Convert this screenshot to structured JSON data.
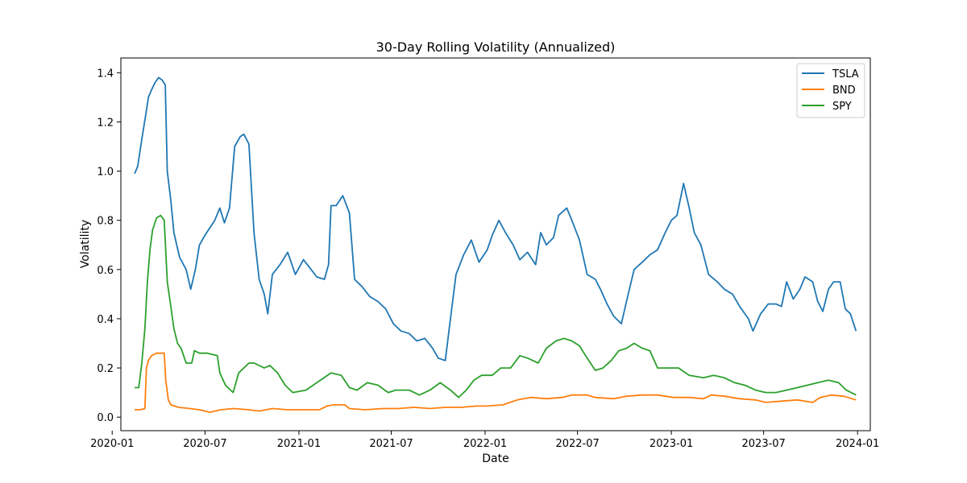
{
  "chart_data": {
    "type": "line",
    "title": "30-Day Rolling Volatility (Annualized)",
    "xlabel": "Date",
    "ylabel": "Volatility",
    "xlim": [
      "2020-01-18",
      "2024-01-26"
    ],
    "ylim": [
      -0.055,
      1.46
    ],
    "x_ticks": [
      "2020-01",
      "2020-07",
      "2021-01",
      "2021-07",
      "2022-01",
      "2022-07",
      "2023-01",
      "2023-07",
      "2024-01"
    ],
    "y_ticks": [
      "0.0",
      "0.2",
      "0.4",
      "0.6",
      "0.8",
      "1.0",
      "1.2",
      "1.4"
    ],
    "y_tick_values": [
      0.0,
      0.2,
      0.4,
      0.6,
      0.8,
      1.0,
      1.2,
      1.4
    ],
    "grid": false,
    "legend_position": "top-right",
    "series": [
      {
        "name": "TSLA",
        "color": "#1f77b4",
        "points": [
          [
            "2020-02-14",
            0.99
          ],
          [
            "2020-02-20",
            1.02
          ],
          [
            "2020-02-28",
            1.13
          ],
          [
            "2020-03-06",
            1.22
          ],
          [
            "2020-03-12",
            1.3
          ],
          [
            "2020-03-18",
            1.33
          ],
          [
            "2020-03-25",
            1.36
          ],
          [
            "2020-04-01",
            1.38
          ],
          [
            "2020-04-08",
            1.37
          ],
          [
            "2020-04-14",
            1.35
          ],
          [
            "2020-04-18",
            1.0
          ],
          [
            "2020-04-25",
            0.88
          ],
          [
            "2020-05-01",
            0.75
          ],
          [
            "2020-05-12",
            0.65
          ],
          [
            "2020-05-25",
            0.6
          ],
          [
            "2020-06-03",
            0.52
          ],
          [
            "2020-06-12",
            0.6
          ],
          [
            "2020-06-20",
            0.7
          ],
          [
            "2020-07-01",
            0.74
          ],
          [
            "2020-07-20",
            0.8
          ],
          [
            "2020-07-30",
            0.85
          ],
          [
            "2020-08-08",
            0.79
          ],
          [
            "2020-08-18",
            0.85
          ],
          [
            "2020-08-28",
            1.1
          ],
          [
            "2020-09-08",
            1.14
          ],
          [
            "2020-09-15",
            1.15
          ],
          [
            "2020-09-25",
            1.11
          ],
          [
            "2020-10-05",
            0.75
          ],
          [
            "2020-10-15",
            0.56
          ],
          [
            "2020-10-25",
            0.5
          ],
          [
            "2020-11-01",
            0.42
          ],
          [
            "2020-11-10",
            0.58
          ],
          [
            "2020-11-25",
            0.62
          ],
          [
            "2020-12-10",
            0.67
          ],
          [
            "2020-12-25",
            0.58
          ],
          [
            "2021-01-10",
            0.64
          ],
          [
            "2021-01-25",
            0.6
          ],
          [
            "2021-02-05",
            0.57
          ],
          [
            "2021-02-20",
            0.56
          ],
          [
            "2021-02-28",
            0.62
          ],
          [
            "2021-03-05",
            0.86
          ],
          [
            "2021-03-15",
            0.86
          ],
          [
            "2021-03-28",
            0.9
          ],
          [
            "2021-04-10",
            0.83
          ],
          [
            "2021-04-20",
            0.56
          ],
          [
            "2021-05-05",
            0.53
          ],
          [
            "2021-05-20",
            0.49
          ],
          [
            "2021-06-05",
            0.47
          ],
          [
            "2021-06-20",
            0.44
          ],
          [
            "2021-07-05",
            0.38
          ],
          [
            "2021-07-20",
            0.35
          ],
          [
            "2021-08-05",
            0.34
          ],
          [
            "2021-08-20",
            0.31
          ],
          [
            "2021-09-05",
            0.32
          ],
          [
            "2021-09-20",
            0.28
          ],
          [
            "2021-10-01",
            0.24
          ],
          [
            "2021-10-15",
            0.23
          ],
          [
            "2021-10-25",
            0.4
          ],
          [
            "2021-11-05",
            0.58
          ],
          [
            "2021-11-20",
            0.66
          ],
          [
            "2021-12-05",
            0.72
          ],
          [
            "2021-12-20",
            0.63
          ],
          [
            "2022-01-05",
            0.68
          ],
          [
            "2022-01-15",
            0.74
          ],
          [
            "2022-01-28",
            0.8
          ],
          [
            "2022-02-10",
            0.75
          ],
          [
            "2022-02-25",
            0.7
          ],
          [
            "2022-03-10",
            0.64
          ],
          [
            "2022-03-25",
            0.67
          ],
          [
            "2022-04-10",
            0.62
          ],
          [
            "2022-04-20",
            0.75
          ],
          [
            "2022-05-01",
            0.7
          ],
          [
            "2022-05-15",
            0.73
          ],
          [
            "2022-05-25",
            0.82
          ],
          [
            "2022-06-10",
            0.85
          ],
          [
            "2022-06-20",
            0.8
          ],
          [
            "2022-07-05",
            0.72
          ],
          [
            "2022-07-20",
            0.58
          ],
          [
            "2022-08-05",
            0.56
          ],
          [
            "2022-08-15",
            0.52
          ],
          [
            "2022-08-28",
            0.46
          ],
          [
            "2022-09-10",
            0.41
          ],
          [
            "2022-09-25",
            0.38
          ],
          [
            "2022-10-05",
            0.47
          ],
          [
            "2022-10-20",
            0.6
          ],
          [
            "2022-11-05",
            0.63
          ],
          [
            "2022-11-20",
            0.66
          ],
          [
            "2022-12-05",
            0.68
          ],
          [
            "2022-12-20",
            0.75
          ],
          [
            "2023-01-01",
            0.8
          ],
          [
            "2023-01-12",
            0.82
          ],
          [
            "2023-01-25",
            0.95
          ],
          [
            "2023-02-05",
            0.85
          ],
          [
            "2023-02-15",
            0.75
          ],
          [
            "2023-02-28",
            0.7
          ],
          [
            "2023-03-15",
            0.58
          ],
          [
            "2023-04-01",
            0.55
          ],
          [
            "2023-04-15",
            0.52
          ],
          [
            "2023-05-01",
            0.5
          ],
          [
            "2023-05-15",
            0.45
          ],
          [
            "2023-06-01",
            0.4
          ],
          [
            "2023-06-10",
            0.35
          ],
          [
            "2023-06-25",
            0.42
          ],
          [
            "2023-07-10",
            0.46
          ],
          [
            "2023-07-25",
            0.46
          ],
          [
            "2023-08-05",
            0.45
          ],
          [
            "2023-08-15",
            0.55
          ],
          [
            "2023-08-28",
            0.48
          ],
          [
            "2023-09-10",
            0.52
          ],
          [
            "2023-09-20",
            0.57
          ],
          [
            "2023-10-05",
            0.55
          ],
          [
            "2023-10-15",
            0.47
          ],
          [
            "2023-10-25",
            0.43
          ],
          [
            "2023-11-05",
            0.52
          ],
          [
            "2023-11-15",
            0.55
          ],
          [
            "2023-11-28",
            0.55
          ],
          [
            "2023-12-08",
            0.44
          ],
          [
            "2023-12-18",
            0.42
          ],
          [
            "2023-12-29",
            0.35
          ]
        ]
      },
      {
        "name": "BND",
        "color": "#ff7f0e",
        "points": [
          [
            "2020-02-14",
            0.03
          ],
          [
            "2020-02-25",
            0.03
          ],
          [
            "2020-03-05",
            0.035
          ],
          [
            "2020-03-08",
            0.2
          ],
          [
            "2020-03-12",
            0.23
          ],
          [
            "2020-03-18",
            0.25
          ],
          [
            "2020-03-28",
            0.26
          ],
          [
            "2020-04-12",
            0.26
          ],
          [
            "2020-04-15",
            0.15
          ],
          [
            "2020-04-20",
            0.07
          ],
          [
            "2020-04-25",
            0.05
          ],
          [
            "2020-05-10",
            0.04
          ],
          [
            "2020-06-01",
            0.035
          ],
          [
            "2020-06-20",
            0.03
          ],
          [
            "2020-07-10",
            0.02
          ],
          [
            "2020-08-01",
            0.03
          ],
          [
            "2020-08-25",
            0.035
          ],
          [
            "2020-09-25",
            0.03
          ],
          [
            "2020-10-15",
            0.025
          ],
          [
            "2020-11-10",
            0.035
          ],
          [
            "2020-12-10",
            0.03
          ],
          [
            "2021-01-10",
            0.03
          ],
          [
            "2021-02-10",
            0.03
          ],
          [
            "2021-02-25",
            0.045
          ],
          [
            "2021-03-10",
            0.05
          ],
          [
            "2021-04-01",
            0.05
          ],
          [
            "2021-04-10",
            0.035
          ],
          [
            "2021-05-10",
            0.03
          ],
          [
            "2021-06-15",
            0.035
          ],
          [
            "2021-07-15",
            0.035
          ],
          [
            "2021-08-15",
            0.04
          ],
          [
            "2021-09-15",
            0.035
          ],
          [
            "2021-10-15",
            0.04
          ],
          [
            "2021-11-15",
            0.04
          ],
          [
            "2021-12-15",
            0.045
          ],
          [
            "2022-01-05",
            0.045
          ],
          [
            "2022-02-05",
            0.05
          ],
          [
            "2022-03-05",
            0.07
          ],
          [
            "2022-04-01",
            0.08
          ],
          [
            "2022-05-01",
            0.075
          ],
          [
            "2022-06-01",
            0.08
          ],
          [
            "2022-06-20",
            0.09
          ],
          [
            "2022-07-20",
            0.09
          ],
          [
            "2022-08-05",
            0.08
          ],
          [
            "2022-09-10",
            0.075
          ],
          [
            "2022-10-05",
            0.085
          ],
          [
            "2022-11-05",
            0.09
          ],
          [
            "2022-12-05",
            0.09
          ],
          [
            "2023-01-05",
            0.08
          ],
          [
            "2023-02-05",
            0.08
          ],
          [
            "2023-03-05",
            0.075
          ],
          [
            "2023-03-20",
            0.09
          ],
          [
            "2023-04-15",
            0.085
          ],
          [
            "2023-05-15",
            0.075
          ],
          [
            "2023-06-15",
            0.07
          ],
          [
            "2023-07-05",
            0.06
          ],
          [
            "2023-08-05",
            0.065
          ],
          [
            "2023-09-05",
            0.07
          ],
          [
            "2023-10-05",
            0.06
          ],
          [
            "2023-10-20",
            0.08
          ],
          [
            "2023-11-10",
            0.09
          ],
          [
            "2023-12-05",
            0.085
          ],
          [
            "2023-12-29",
            0.07
          ]
        ]
      },
      {
        "name": "SPY",
        "color": "#2ca02c",
        "points": [
          [
            "2020-02-14",
            0.12
          ],
          [
            "2020-02-22",
            0.12
          ],
          [
            "2020-02-28",
            0.22
          ],
          [
            "2020-03-05",
            0.36
          ],
          [
            "2020-03-10",
            0.55
          ],
          [
            "2020-03-15",
            0.68
          ],
          [
            "2020-03-20",
            0.76
          ],
          [
            "2020-03-28",
            0.81
          ],
          [
            "2020-04-05",
            0.82
          ],
          [
            "2020-04-12",
            0.8
          ],
          [
            "2020-04-18",
            0.55
          ],
          [
            "2020-04-25",
            0.45
          ],
          [
            "2020-05-01",
            0.36
          ],
          [
            "2020-05-08",
            0.3
          ],
          [
            "2020-05-15",
            0.28
          ],
          [
            "2020-05-25",
            0.22
          ],
          [
            "2020-06-05",
            0.22
          ],
          [
            "2020-06-10",
            0.27
          ],
          [
            "2020-06-20",
            0.26
          ],
          [
            "2020-07-05",
            0.26
          ],
          [
            "2020-07-25",
            0.25
          ],
          [
            "2020-07-30",
            0.18
          ],
          [
            "2020-08-10",
            0.13
          ],
          [
            "2020-08-25",
            0.1
          ],
          [
            "2020-09-05",
            0.18
          ],
          [
            "2020-09-25",
            0.22
          ],
          [
            "2020-10-05",
            0.22
          ],
          [
            "2020-10-25",
            0.2
          ],
          [
            "2020-11-05",
            0.21
          ],
          [
            "2020-11-20",
            0.18
          ],
          [
            "2020-12-05",
            0.13
          ],
          [
            "2020-12-20",
            0.1
          ],
          [
            "2021-01-15",
            0.11
          ],
          [
            "2021-02-05",
            0.14
          ],
          [
            "2021-03-05",
            0.18
          ],
          [
            "2021-03-25",
            0.17
          ],
          [
            "2021-04-10",
            0.12
          ],
          [
            "2021-04-25",
            0.11
          ],
          [
            "2021-05-15",
            0.14
          ],
          [
            "2021-06-05",
            0.13
          ],
          [
            "2021-06-25",
            0.1
          ],
          [
            "2021-07-10",
            0.11
          ],
          [
            "2021-08-05",
            0.11
          ],
          [
            "2021-08-25",
            0.09
          ],
          [
            "2021-09-15",
            0.11
          ],
          [
            "2021-10-05",
            0.14
          ],
          [
            "2021-10-25",
            0.11
          ],
          [
            "2021-11-10",
            0.08
          ],
          [
            "2021-11-25",
            0.11
          ],
          [
            "2021-12-10",
            0.15
          ],
          [
            "2021-12-25",
            0.17
          ],
          [
            "2022-01-15",
            0.17
          ],
          [
            "2022-02-01",
            0.2
          ],
          [
            "2022-02-20",
            0.2
          ],
          [
            "2022-03-10",
            0.25
          ],
          [
            "2022-03-25",
            0.24
          ],
          [
            "2022-04-15",
            0.22
          ],
          [
            "2022-05-01",
            0.28
          ],
          [
            "2022-05-20",
            0.31
          ],
          [
            "2022-06-05",
            0.32
          ],
          [
            "2022-06-20",
            0.31
          ],
          [
            "2022-07-05",
            0.29
          ],
          [
            "2022-07-20",
            0.24
          ],
          [
            "2022-08-05",
            0.19
          ],
          [
            "2022-08-20",
            0.2
          ],
          [
            "2022-09-05",
            0.23
          ],
          [
            "2022-09-20",
            0.27
          ],
          [
            "2022-10-05",
            0.28
          ],
          [
            "2022-10-20",
            0.3
          ],
          [
            "2022-11-05",
            0.28
          ],
          [
            "2022-11-20",
            0.27
          ],
          [
            "2022-12-05",
            0.2
          ],
          [
            "2022-12-20",
            0.2
          ],
          [
            "2023-01-15",
            0.2
          ],
          [
            "2023-02-05",
            0.17
          ],
          [
            "2023-03-05",
            0.16
          ],
          [
            "2023-03-25",
            0.17
          ],
          [
            "2023-04-15",
            0.16
          ],
          [
            "2023-05-05",
            0.14
          ],
          [
            "2023-05-25",
            0.13
          ],
          [
            "2023-06-15",
            0.11
          ],
          [
            "2023-07-05",
            0.1
          ],
          [
            "2023-07-25",
            0.1
          ],
          [
            "2023-08-15",
            0.11
          ],
          [
            "2023-09-05",
            0.12
          ],
          [
            "2023-09-25",
            0.13
          ],
          [
            "2023-10-15",
            0.14
          ],
          [
            "2023-11-05",
            0.15
          ],
          [
            "2023-11-25",
            0.14
          ],
          [
            "2023-12-10",
            0.11
          ],
          [
            "2023-12-29",
            0.09
          ]
        ]
      }
    ]
  }
}
